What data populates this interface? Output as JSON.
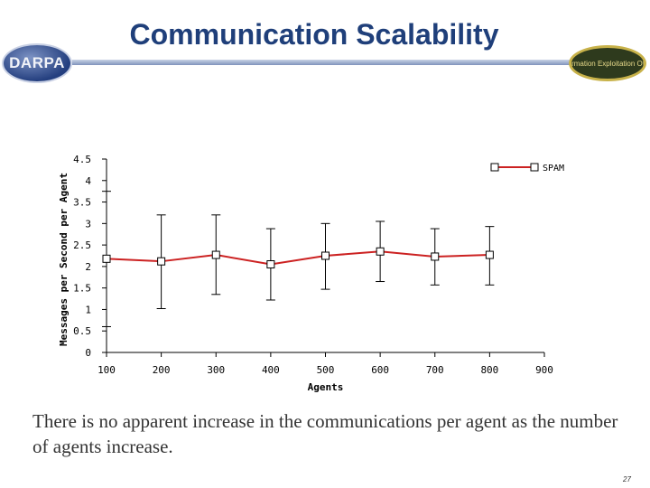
{
  "slide": {
    "title": "Communication Scalability",
    "caption": "There is no apparent increase in the communications per agent as the number of agents increase.",
    "page_number": "27",
    "logo_left_text": "DARPA",
    "logo_right_text": "Information Exploitation Office"
  },
  "colors": {
    "title": "#1f3f7a",
    "series_line": "#cc2222",
    "axis": "#000000",
    "grid": "#dddddd"
  },
  "chart_data": {
    "type": "line",
    "title": "",
    "xlabel": "Agents",
    "ylabel": "Messages per Second per Agent",
    "xlim": [
      100,
      900
    ],
    "ylim": [
      0,
      4.5
    ],
    "x_ticks": [
      "100",
      "200",
      "300",
      "400",
      "500",
      "600",
      "700",
      "800",
      "900"
    ],
    "y_ticks": [
      "0",
      "0.5",
      "1",
      "1.5",
      "2",
      "2.5",
      "3",
      "3.5",
      "4",
      "4.5"
    ],
    "legend_position": "top-right",
    "series": [
      {
        "name": "SPAM",
        "x": [
          100,
          200,
          300,
          400,
          500,
          600,
          700,
          800
        ],
        "y": [
          2.18,
          2.12,
          2.27,
          2.05,
          2.25,
          2.35,
          2.23,
          2.27
        ],
        "error_low": [
          0.6,
          1.02,
          1.35,
          1.22,
          1.47,
          1.65,
          1.57,
          1.57
        ],
        "error_high": [
          3.75,
          3.2,
          3.2,
          2.88,
          3.0,
          3.05,
          2.88,
          2.93
        ]
      }
    ]
  }
}
